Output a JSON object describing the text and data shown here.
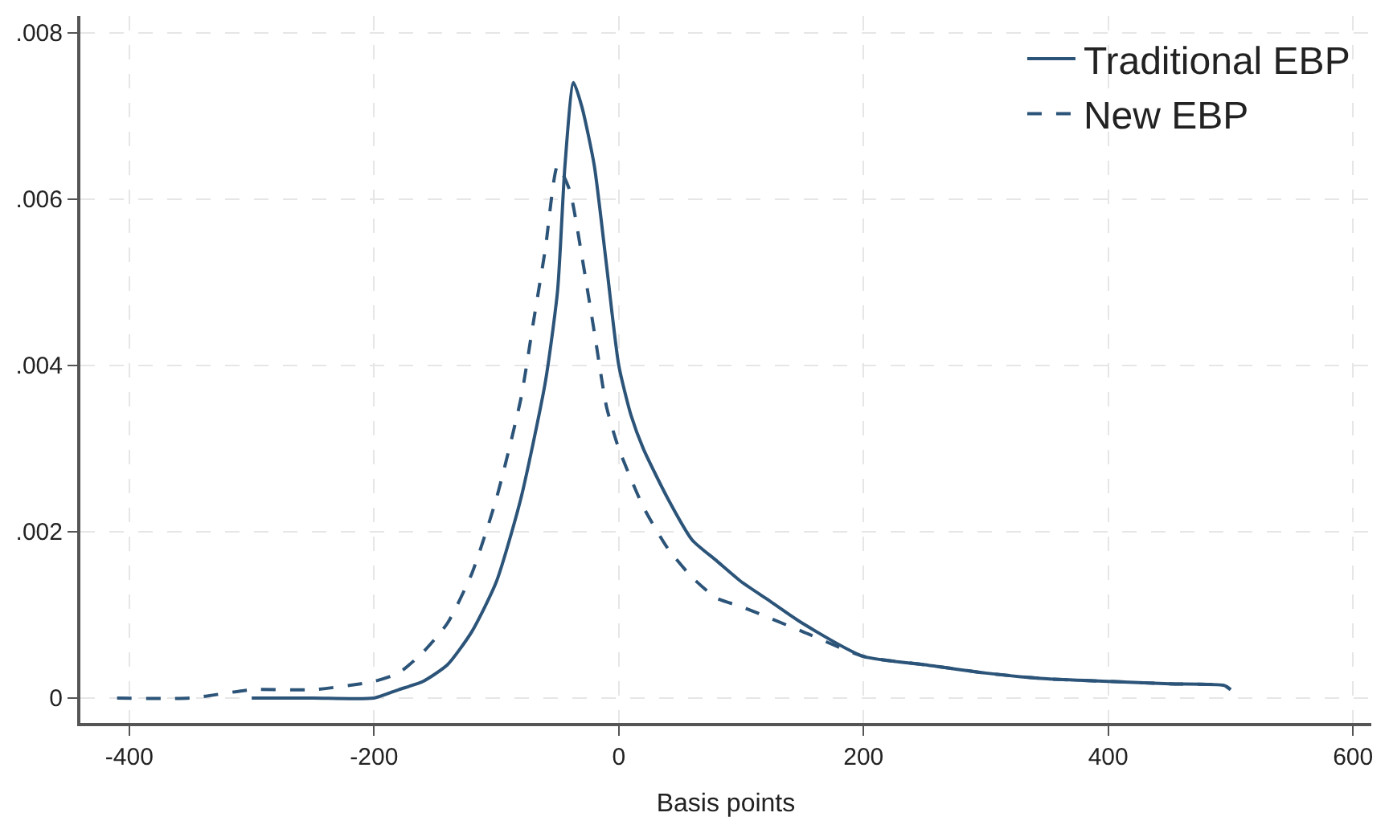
{
  "chart_data": {
    "type": "line",
    "xlabel": "Basis points",
    "xlim": [
      -440,
      615
    ],
    "ylim": [
      -0.0003,
      0.0082
    ],
    "xticks": [
      -400,
      -200,
      0,
      200,
      400,
      600
    ],
    "yticks": [
      {
        "value": 0,
        "label": "0"
      },
      {
        "value": 0.002,
        "label": ".002"
      },
      {
        "value": 0.004,
        "label": ".004"
      },
      {
        "value": 0.006,
        "label": ".006"
      },
      {
        "value": 0.008,
        "label": ".008"
      }
    ],
    "grid": true,
    "legend": "top right",
    "series": [
      {
        "name": "Traditional EBP",
        "color": "#2c5479",
        "line_style": "solid",
        "x": [
          -300,
          -250,
          -200,
          -180,
          -160,
          -140,
          -120,
          -100,
          -80,
          -60,
          -50,
          -44,
          -37,
          -30,
          -20,
          -10,
          0,
          10,
          20,
          40,
          60,
          80,
          100,
          120,
          150,
          200,
          250,
          300,
          350,
          400,
          450,
          495,
          500
        ],
        "values": [
          0,
          0,
          0,
          0.0001,
          0.0002,
          0.0004,
          0.0008,
          0.0014,
          0.0024,
          0.0038,
          0.0049,
          0.0064,
          0.0074,
          0.0071,
          0.0064,
          0.0052,
          0.004,
          0.0034,
          0.003,
          0.0024,
          0.0019,
          0.00165,
          0.0014,
          0.0012,
          0.0009,
          0.0005,
          0.0004,
          0.0003,
          0.00023,
          0.0002,
          0.00017,
          0.00015,
          0.0001
        ]
      },
      {
        "name": "New EBP",
        "color": "#2c5479",
        "line_style": "dashed",
        "x": [
          -410,
          -350,
          -300,
          -250,
          -200,
          -180,
          -160,
          -140,
          -120,
          -100,
          -80,
          -70,
          -60,
          -50,
          -40,
          -30,
          -20,
          -10,
          0,
          20,
          40,
          60,
          80,
          100,
          150,
          200,
          250,
          300,
          350,
          400,
          450,
          495,
          500
        ],
        "values": [
          0,
          0,
          0.0001,
          0.0001,
          0.0002,
          0.0003,
          0.00055,
          0.0009,
          0.0015,
          0.0024,
          0.0036,
          0.0045,
          0.0054,
          0.0064,
          0.0061,
          0.0053,
          0.0044,
          0.0035,
          0.003,
          0.0023,
          0.0018,
          0.00145,
          0.0012,
          0.0011,
          0.0008,
          0.0005,
          0.0004,
          0.0003,
          0.00023,
          0.0002,
          0.00017,
          0.00015,
          0.0001
        ]
      }
    ]
  }
}
